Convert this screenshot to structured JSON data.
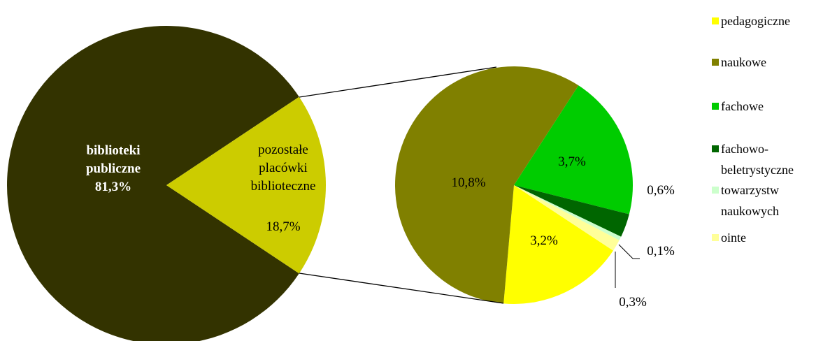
{
  "chart_data": [
    {
      "type": "pie",
      "categories": [
        "biblioteki publiczne",
        "pozostałe placówki biblioteczne"
      ],
      "values": [
        81.3,
        18.7
      ],
      "value_labels": [
        "81,3%",
        "18,7%"
      ],
      "colors": [
        "#333300",
        "#cccc00"
      ]
    },
    {
      "type": "pie",
      "categories": [
        "pedagogiczne",
        "naukowe",
        "fachowe",
        "fachowo-beletrystyczne",
        "towarzystw naukowych",
        "ointe"
      ],
      "values": [
        3.2,
        10.8,
        3.7,
        0.6,
        0.1,
        0.3
      ],
      "value_labels": [
        "3,2%",
        "10,8%",
        "3,7%",
        "0,6%",
        "0,1%",
        "0,3%"
      ],
      "colors": [
        "#ffff00",
        "#808000",
        "#00cc00",
        "#006600",
        "#ccffcc",
        "#ffff99"
      ],
      "legend": "right"
    }
  ]
}
